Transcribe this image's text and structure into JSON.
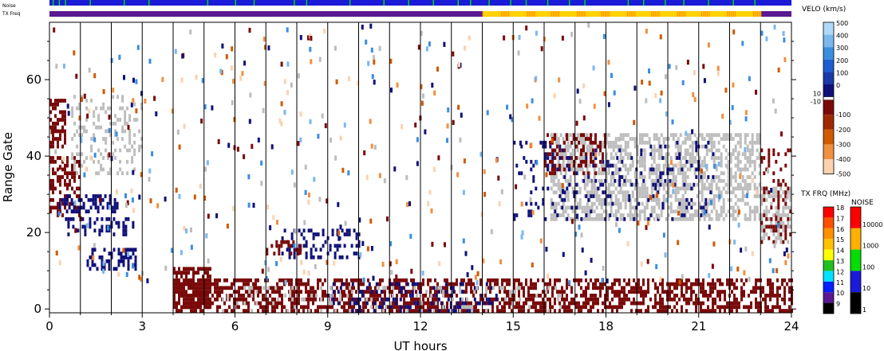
{
  "chart_data": {
    "type": "heatmap",
    "xlabel": "UT hours",
    "ylabel": "Range Gate",
    "xlim": [
      0,
      24
    ],
    "ylim": [
      -1,
      75
    ],
    "x_ticks": [
      {
        "v": 0,
        "label": "0"
      },
      {
        "v": 3,
        "label": "3"
      },
      {
        "v": 6,
        "label": "6"
      },
      {
        "v": 9,
        "label": "9"
      },
      {
        "v": 12,
        "label": "12"
      },
      {
        "v": 15,
        "label": "15"
      },
      {
        "v": 18,
        "label": "18"
      },
      {
        "v": 21,
        "label": "21"
      },
      {
        "v": 24,
        "label": "24"
      }
    ],
    "y_ticks": [
      {
        "v": 0,
        "label": "0"
      },
      {
        "v": 20,
        "label": "20"
      },
      {
        "v": 40,
        "label": "40"
      },
      {
        "v": 60,
        "label": "60"
      }
    ],
    "top_bars": {
      "noise_label": "Noise",
      "txfreq_label": "TX Freq",
      "noise_color": "#1a1ad8",
      "noise_ticks": [
        0.1,
        0.3,
        0.5,
        1.3,
        2.4,
        3.2,
        5.1,
        6.0,
        6.6,
        7.9,
        8.3,
        9.7,
        10.8,
        11.6,
        12.4,
        13.2,
        13.6,
        14.2,
        14.9,
        15.4,
        16.1,
        16.8,
        17.3,
        18.7,
        19.2,
        19.9,
        20.5,
        21.3,
        22.1,
        22.8
      ],
      "txfreq_segments": [
        {
          "from": 0,
          "to": 14,
          "color": "#5a1891"
        },
        {
          "from": 14,
          "to": 23,
          "color": "#ffd200"
        },
        {
          "from": 23,
          "to": 24,
          "color": "#5a1891"
        }
      ]
    },
    "hour_lines": [
      1,
      2,
      3,
      4,
      5,
      6,
      7,
      8,
      9,
      10,
      11,
      12,
      13,
      14,
      15,
      16,
      17,
      18,
      19,
      20,
      21,
      22,
      23
    ],
    "regions": [
      {
        "name": "near-range ground scatter",
        "x": [
          4.0,
          24
        ],
        "y": [
          0,
          8
        ],
        "color": "#7a0a0a",
        "density": 0.55
      },
      {
        "name": "near-range negative velocity",
        "x": [
          4.0,
          5.2
        ],
        "y": [
          1,
          11
        ],
        "color": "#7a0a0a",
        "density": 0.75
      },
      {
        "name": "near-range mixed positive",
        "x": [
          9.0,
          14.5
        ],
        "y": [
          0,
          7
        ],
        "color": "#101078",
        "density": 0.22
      },
      {
        "name": "near-range gray",
        "x": [
          5.5,
          16.5
        ],
        "y": [
          0,
          6
        ],
        "color": "#bdbdbd",
        "density": 0.12
      },
      {
        "name": "early dark red band",
        "x": [
          0,
          0.5
        ],
        "y": [
          43,
          55
        ],
        "color": "#7a0a0a",
        "density": 0.6
      },
      {
        "name": "early mixed band",
        "x": [
          0,
          1.0
        ],
        "y": [
          25,
          40
        ],
        "color": "#7a0a0a",
        "density": 0.45
      },
      {
        "name": "early blue band",
        "x": [
          0.3,
          2.2
        ],
        "y": [
          26,
          30
        ],
        "color": "#101078",
        "density": 0.5
      },
      {
        "name": "early blue band 2",
        "x": [
          0.5,
          2.8
        ],
        "y": [
          20,
          24
        ],
        "color": "#101078",
        "density": 0.35
      },
      {
        "name": "early rising echo",
        "x": [
          0.7,
          3.0
        ],
        "y": [
          36,
          56
        ],
        "color": "#bdbdbd",
        "density": 0.25
      },
      {
        "name": "early blue lower",
        "x": [
          1.2,
          2.8
        ],
        "y": [
          11,
          16
        ],
        "color": "#101078",
        "density": 0.45
      },
      {
        "name": "mid echo blue",
        "x": [
          7.5,
          10.0
        ],
        "y": [
          14,
          21
        ],
        "color": "#101078",
        "density": 0.3
      },
      {
        "name": "mid echo red",
        "x": [
          7.0,
          8.2
        ],
        "y": [
          15,
          18
        ],
        "color": "#7a0a0a",
        "density": 0.3
      },
      {
        "name": "late gray scatter",
        "x": [
          16.2,
          23.0
        ],
        "y": [
          24,
          46
        ],
        "color": "#bdbdbd",
        "density": 0.55
      },
      {
        "name": "late dark red",
        "x": [
          16.0,
          18.0
        ],
        "y": [
          36,
          46
        ],
        "color": "#7a0a0a",
        "density": 0.3
      },
      {
        "name": "late blue",
        "x": [
          15.0,
          21.5
        ],
        "y": [
          24,
          44
        ],
        "color": "#101078",
        "density": 0.12
      },
      {
        "name": "end gray",
        "x": [
          23.0,
          24
        ],
        "y": [
          18,
          32
        ],
        "color": "#bdbdbd",
        "density": 0.45
      },
      {
        "name": "end red",
        "x": [
          23.0,
          24
        ],
        "y": [
          18,
          42
        ],
        "color": "#7a0a0a",
        "density": 0.25
      }
    ],
    "velo_colorbar": {
      "title": "VELO (km/s)",
      "positive": [
        {
          "label": "500",
          "color": "#b0d8f8"
        },
        {
          "label": "400",
          "color": "#7ab8ee"
        },
        {
          "label": "300",
          "color": "#3a8ee0"
        },
        {
          "label": "200",
          "color": "#1a5ed0"
        },
        {
          "label": "100",
          "color": "#1a3aa8"
        },
        {
          "label": "0",
          "color": "#101078"
        }
      ],
      "mid_upper": "10",
      "mid_lower": "-10",
      "negative": [
        {
          "label": "-100",
          "color": "#7a0a0a"
        },
        {
          "label": "-200",
          "color": "#a02a00"
        },
        {
          "label": "-300",
          "color": "#d05a00"
        },
        {
          "label": "-400",
          "color": "#f09040"
        },
        {
          "label": "-500",
          "color": "#fad2b0"
        }
      ]
    },
    "txfrq_colorbar": {
      "title": "TX FRQ (MHz)",
      "labels": [
        "18",
        "17",
        "16",
        "15",
        "14",
        "13",
        "12",
        "11",
        "10",
        "9"
      ],
      "colors": [
        "#ff0000",
        "#ff5000",
        "#ff9000",
        "#ffc000",
        "#ffff00",
        "#20c020",
        "#00e0ff",
        "#0020ff",
        "#5a1891",
        "#000000"
      ]
    },
    "noise_colorbar": {
      "title": "NOISE",
      "labels": [
        "10000",
        "1000",
        "100",
        "10",
        "1"
      ],
      "colors": [
        "#ff0000",
        "#ffb000",
        "#00dd00",
        "#1a1ad8",
        "#000000"
      ]
    }
  }
}
